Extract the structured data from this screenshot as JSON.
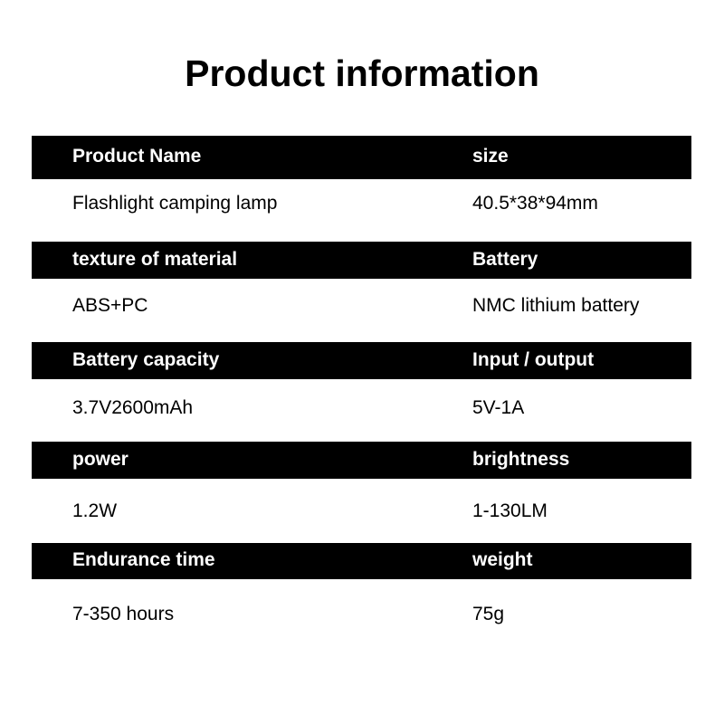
{
  "title": "Product information",
  "rows": [
    {
      "labels": [
        "Product Name",
        "size"
      ],
      "values": [
        "Flashlight camping lamp",
        "40.5*38*94mm"
      ]
    },
    {
      "labels": [
        "texture of material",
        "Battery"
      ],
      "values": [
        "ABS+PC",
        "NMC lithium battery"
      ]
    },
    {
      "labels": [
        "Battery capacity",
        "Input / output"
      ],
      "values": [
        "3.7V2600mAh",
        "5V-1A"
      ]
    },
    {
      "labels": [
        "power",
        "brightness"
      ],
      "values": [
        "1.2W",
        "1-130LM"
      ]
    },
    {
      "labels": [
        "Endurance time",
        "weight"
      ],
      "values": [
        "7-350 hours",
        "75g"
      ]
    }
  ],
  "colors": {
    "header_bg": "#000000",
    "header_text": "#ffffff",
    "value_text": "#000000"
  }
}
